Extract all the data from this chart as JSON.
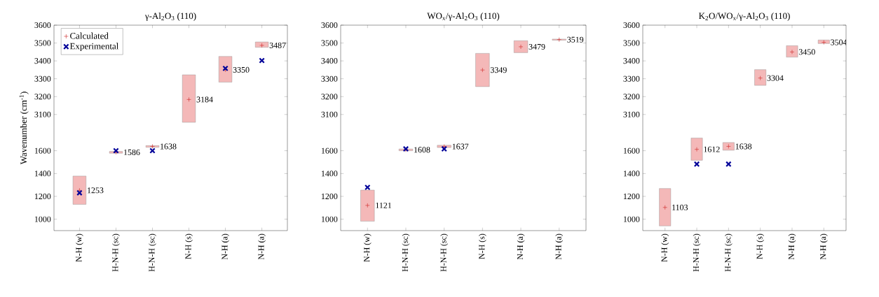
{
  "chart_data": [
    {
      "type": "bar",
      "title": "γ-Al$_{2}$O$_{3}$ (110)",
      "ylabel": "Wavenumber (cm$^{-1}$)",
      "categories": [
        null,
        null,
        null,
        null,
        null,
        null
      ],
      "ylim": [
        3025,
        3600
      ],
      "yticks": [
        3100,
        3200,
        3300,
        3400,
        3500,
        3600
      ],
      "tick_labels": "y",
      "legend": "top left",
      "series": [
        {
          "color": "#f4b8b8",
          "base": [
            null,
            null,
            null,
            3056,
            3281,
            3476
          ],
          "values": [
            null,
            null,
            null,
            266,
            144,
            30
          ]
        },
        {
          "name": "Calculated",
          "type": "scatter",
          "color": "#cc2222",
          "data_labels": true,
          "values": [
            null,
            null,
            null,
            3184,
            3350,
            3487
          ]
        },
        {
          "name": "Experimental",
          "type": "scatter",
          "marker": "cross",
          "color": "#000099",
          "values": [
            null,
            null,
            null,
            null,
            3358,
            3402
          ]
        }
      ]
    },
    {
      "type": "bar",
      "title": "WO$_{x}$/γ-Al$_{2}$O$_{3}$ (110)",
      "categories": [
        null,
        null,
        null,
        null,
        null,
        null
      ],
      "ylim": [
        3025,
        3600
      ],
      "yticks": [
        3100,
        3200,
        3300,
        3400,
        3500,
        3600
      ],
      "tick_labels": "y",
      "series": [
        {
          "color": "#f4b8b8",
          "base": [
            null,
            null,
            null,
            3256,
            3446,
            3516
          ],
          "values": [
            null,
            null,
            null,
            186,
            67,
            6
          ]
        },
        {
          "type": "scatter",
          "color": "#cc2222",
          "data_labels": true,
          "values": [
            null,
            null,
            null,
            3349,
            3479,
            3519
          ]
        }
      ]
    },
    {
      "type": "bar",
      "title": "K$_{2}$O/WO$_{x}$/γ-Al$_{2}$O$_{3}$ (110)",
      "categories": [
        null,
        null,
        null,
        null,
        null,
        null
      ],
      "ylim": [
        3025,
        3600
      ],
      "yticks": [
        3100,
        3200,
        3300,
        3400,
        3500,
        3600
      ],
      "tick_labels": "y",
      "series": [
        {
          "color": "#f4b8b8",
          "base": [
            null,
            null,
            null,
            3263,
            3421,
            3497
          ],
          "values": [
            null,
            null,
            null,
            88,
            64,
            20
          ]
        },
        {
          "type": "scatter",
          "color": "#cc2222",
          "data_labels": true,
          "values": [
            null,
            null,
            null,
            3304,
            3450,
            3504
          ]
        }
      ]
    },
    {
      "type": "bar",
      "categories": [
        "N-H (w)",
        "H-N-H (sc)",
        "H-N-H (sc)",
        "N-H (s)",
        "N-H (a)",
        "N-H (a)"
      ],
      "ylim": [
        900,
        1800
      ],
      "yticks": [
        1000,
        1200,
        1400,
        1600
      ],
      "series": [
        {
          "color": "#f4b8b8",
          "base": [
            1130,
            1578,
            1630,
            null,
            null,
            null
          ],
          "values": [
            248,
            16,
            15,
            null,
            null,
            null
          ]
        },
        {
          "type": "scatter",
          "color": "#cc2222",
          "data_labels": true,
          "values": [
            1253,
            1586,
            1638,
            null,
            null,
            null
          ]
        },
        {
          "type": "scatter",
          "marker": "cross",
          "color": "#000099",
          "values": [
            1231,
            1600,
            1600,
            null,
            null,
            null
          ]
        }
      ]
    },
    {
      "type": "bar",
      "categories": [
        "N-H (w)",
        "H-N-H (sc)",
        "H-N-H (sc)",
        "N-H (s)",
        "N-H (a)",
        "N-H (a)"
      ],
      "ylim": [
        900,
        1800
      ],
      "yticks": [
        1000,
        1200,
        1400,
        1600
      ],
      "series": [
        {
          "color": "#f4b8b8",
          "base": [
            982,
            1600,
            1628,
            null,
            null,
            null
          ],
          "values": [
            273,
            15,
            20,
            null,
            null,
            null
          ]
        },
        {
          "type": "scatter",
          "color": "#cc2222",
          "data_labels": true,
          "values": [
            1121,
            1608,
            1637,
            null,
            null,
            null
          ]
        },
        {
          "type": "scatter",
          "marker": "cross",
          "color": "#000099",
          "values": [
            1279,
            1616,
            1616,
            null,
            null,
            null
          ]
        }
      ]
    },
    {
      "type": "bar",
      "categories": [
        "N-H (w)",
        "H-N-H (sc)",
        "H-N-H (sc)",
        "N-H (s)",
        "N-H (a)",
        "N-H (a)"
      ],
      "ylim": [
        900,
        1800
      ],
      "yticks": [
        1000,
        1200,
        1400,
        1600
      ],
      "series": [
        {
          "color": "#f4b8b8",
          "base": [
            941,
            1516,
            1604,
            null,
            null,
            null
          ],
          "values": [
            328,
            195,
            68,
            null,
            null,
            null
          ]
        },
        {
          "type": "scatter",
          "color": "#cc2222",
          "data_labels": true,
          "values": [
            1103,
            1612,
            1638,
            null,
            null,
            null
          ]
        },
        {
          "type": "scatter",
          "marker": "cross",
          "color": "#000099",
          "values": [
            null,
            1483,
            1483,
            null,
            null,
            null
          ]
        }
      ]
    }
  ]
}
